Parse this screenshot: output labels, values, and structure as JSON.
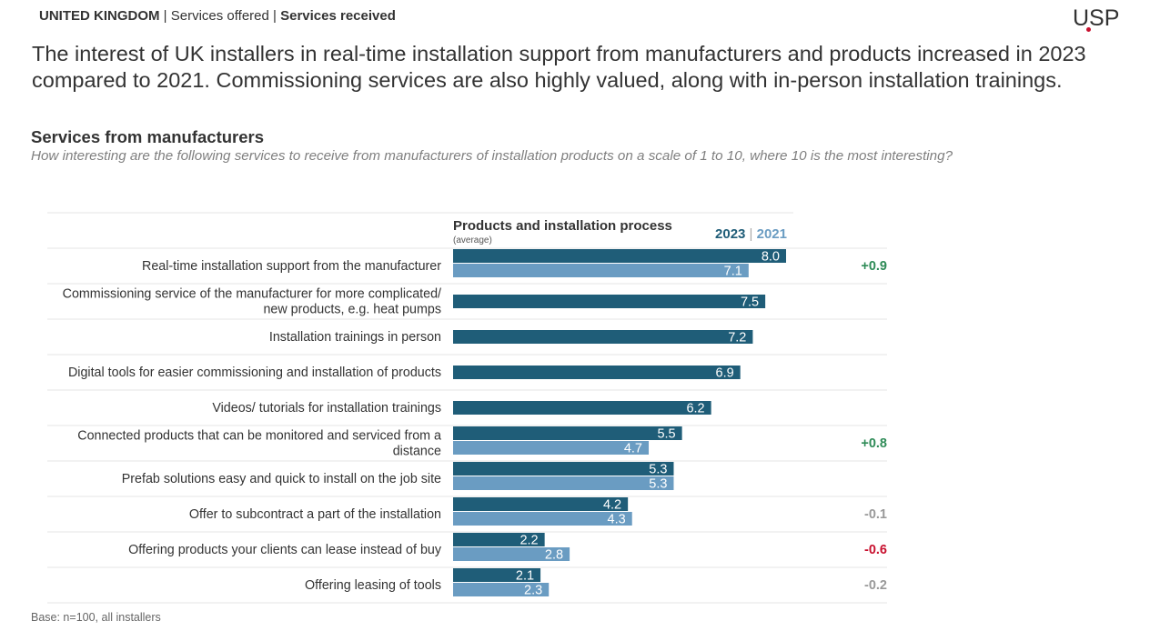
{
  "breadcrumb": {
    "country": "UNITED KINGDOM",
    "separator": " | ",
    "item1": "Services offered",
    "item2": "Services received"
  },
  "logo": {
    "text": "USP"
  },
  "headline": "The interest of UK installers in real-time installation support from manufacturers and products increased in 2023 compared to 2021. Commissioning services are also highly valued, along with in-person installation trainings.",
  "subtitle": "Services from manufacturers",
  "question": "How interesting are the following services to receive from manufacturers of installation products on a scale of 1 to 10, where 10 is the most interesting?",
  "base_note": "Base: n=100, all installers",
  "colors": {
    "y2023": "#1f5d78",
    "y2021": "#6a9cc2",
    "positive": "#2e8b57",
    "negative": "#c8102e",
    "neutral": "#999999",
    "grid": "#e6e6e6"
  },
  "chart_data": {
    "type": "bar",
    "orientation": "horizontal",
    "title": "Products and installation process",
    "subtitle": "(average)",
    "legend_separator": " | ",
    "xlim": [
      0,
      10
    ],
    "categories": [
      "Real-time installation support from the manufacturer",
      "Commissioning service of the manufacturer for more complicated/ new products, e.g. heat pumps",
      "Installation trainings in person",
      "Digital tools for easier commissioning and installation of products",
      "Videos/ tutorials for installation trainings",
      "Connected products that can be monitored and serviced from a distance",
      "Prefab solutions easy and quick to install on the job site",
      "Offer to subcontract a part of the installation",
      "Offering products your clients can lease instead of buy",
      "Offering leasing of tools"
    ],
    "category_lines": [
      [
        "Real-time installation support from the manufacturer"
      ],
      [
        "Commissioning service of the manufacturer for more complicated/",
        "new products, e.g. heat pumps"
      ],
      [
        "Installation trainings in person"
      ],
      [
        "Digital tools for easier commissioning and installation of products"
      ],
      [
        "Videos/ tutorials for installation trainings"
      ],
      [
        "Connected products that can be monitored and serviced from a",
        "distance"
      ],
      [
        "Prefab solutions easy and quick to install on the job site"
      ],
      [
        "Offer to subcontract a part of the installation"
      ],
      [
        "Offering products your clients can lease instead of buy"
      ],
      [
        "Offering leasing of tools"
      ]
    ],
    "series": [
      {
        "name": "2023",
        "values": [
          8.0,
          7.5,
          7.2,
          6.9,
          6.2,
          5.5,
          5.3,
          4.2,
          2.2,
          2.1
        ]
      },
      {
        "name": "2021",
        "values": [
          7.1,
          null,
          null,
          null,
          null,
          4.7,
          5.3,
          4.3,
          2.8,
          2.3
        ]
      }
    ],
    "differences": [
      "+0.9",
      "",
      "",
      "",
      "",
      "+0.8",
      "",
      "-0.1",
      "-0.6",
      "-0.2"
    ],
    "difference_styles": [
      "positive",
      "",
      "",
      "",
      "",
      "positive",
      "",
      "neutral",
      "negative",
      "neutral"
    ]
  }
}
